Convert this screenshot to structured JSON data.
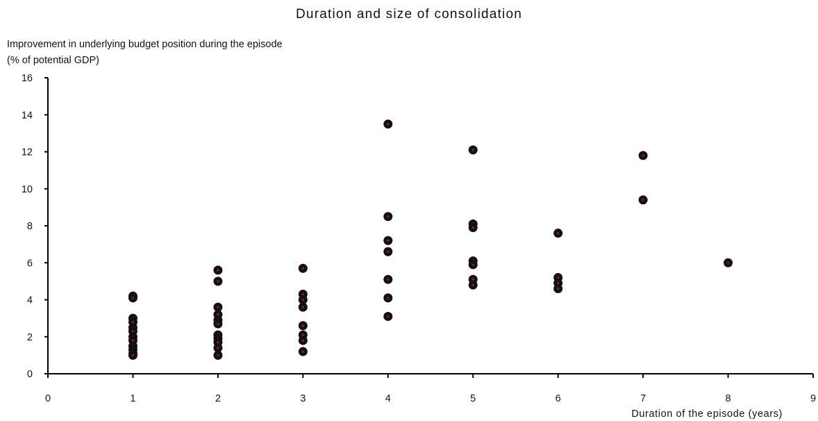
{
  "chart_data": {
    "type": "scatter",
    "title": "Duration and size of consolidation",
    "ylabel_lines": [
      "Improvement in underlying budget position during the episode",
      "(% of potential GDP)"
    ],
    "xlabel": "Duration of the episode (years)",
    "xlim": [
      0,
      9
    ],
    "ylim": [
      0,
      16
    ],
    "x_ticks": [
      0,
      1,
      2,
      3,
      4,
      5,
      6,
      7,
      8,
      9
    ],
    "y_ticks": [
      0,
      2,
      4,
      6,
      8,
      10,
      12,
      14,
      16
    ],
    "grid": false,
    "legend": "none",
    "marker_fill": "#111111",
    "marker_center": "#8b1a1a",
    "points": [
      {
        "x": 1,
        "y": 4.2
      },
      {
        "x": 1,
        "y": 4.1
      },
      {
        "x": 1,
        "y": 3.0
      },
      {
        "x": 1,
        "y": 2.8
      },
      {
        "x": 1,
        "y": 2.5
      },
      {
        "x": 1,
        "y": 2.3
      },
      {
        "x": 1,
        "y": 2.0
      },
      {
        "x": 1,
        "y": 1.8
      },
      {
        "x": 1,
        "y": 1.5
      },
      {
        "x": 1,
        "y": 1.3
      },
      {
        "x": 1,
        "y": 1.1
      },
      {
        "x": 1,
        "y": 1.0
      },
      {
        "x": 2,
        "y": 5.6
      },
      {
        "x": 2,
        "y": 5.0
      },
      {
        "x": 2,
        "y": 3.6
      },
      {
        "x": 2,
        "y": 3.2
      },
      {
        "x": 2,
        "y": 2.9
      },
      {
        "x": 2,
        "y": 2.7
      },
      {
        "x": 2,
        "y": 2.1
      },
      {
        "x": 2,
        "y": 1.9
      },
      {
        "x": 2,
        "y": 1.7
      },
      {
        "x": 2,
        "y": 1.4
      },
      {
        "x": 2,
        "y": 1.0
      },
      {
        "x": 3,
        "y": 5.7
      },
      {
        "x": 3,
        "y": 4.3
      },
      {
        "x": 3,
        "y": 4.0
      },
      {
        "x": 3,
        "y": 3.6
      },
      {
        "x": 3,
        "y": 2.6
      },
      {
        "x": 3,
        "y": 2.1
      },
      {
        "x": 3,
        "y": 1.8
      },
      {
        "x": 3,
        "y": 1.2
      },
      {
        "x": 4,
        "y": 13.5
      },
      {
        "x": 4,
        "y": 8.5
      },
      {
        "x": 4,
        "y": 7.2
      },
      {
        "x": 4,
        "y": 6.6
      },
      {
        "x": 4,
        "y": 5.1
      },
      {
        "x": 4,
        "y": 4.1
      },
      {
        "x": 4,
        "y": 3.1
      },
      {
        "x": 5,
        "y": 12.1
      },
      {
        "x": 5,
        "y": 8.1
      },
      {
        "x": 5,
        "y": 7.9
      },
      {
        "x": 5,
        "y": 6.1
      },
      {
        "x": 5,
        "y": 5.9
      },
      {
        "x": 5,
        "y": 5.1
      },
      {
        "x": 5,
        "y": 4.8
      },
      {
        "x": 6,
        "y": 7.6
      },
      {
        "x": 6,
        "y": 5.2
      },
      {
        "x": 6,
        "y": 4.9
      },
      {
        "x": 6,
        "y": 4.6
      },
      {
        "x": 7,
        "y": 11.8
      },
      {
        "x": 7,
        "y": 9.4
      },
      {
        "x": 8,
        "y": 6.0
      }
    ]
  }
}
